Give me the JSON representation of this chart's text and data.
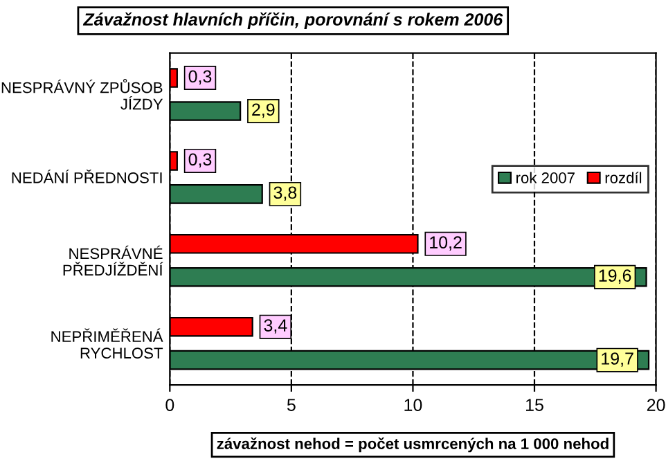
{
  "chart_data": {
    "type": "bar",
    "orientation": "horizontal",
    "title": "Závažnost hlavních příčin, porovnání s rokem 2006",
    "xlabel": "závažnost nehod = počet usmrcených na 1 000 nehod",
    "categories": [
      "NESPRÁVNÝ ZPŮSOB\nJÍZDY",
      "NEDÁNÍ PŘEDNOSTI",
      "NESPRÁVNÉ\nPŘEDJÍŽDĚNÍ",
      "NEPŘIMĚŘENÁ\nRYCHLOST"
    ],
    "series": [
      {
        "name": "rok 2007",
        "color": "#2e7d52",
        "values": [
          2.9,
          3.8,
          19.6,
          19.7
        ],
        "value_labels": [
          "2,9",
          "3,8",
          "19,6",
          "19,7"
        ]
      },
      {
        "name": "rozdíl",
        "color": "#ff0000",
        "values": [
          0.3,
          0.3,
          10.2,
          3.4
        ],
        "value_labels": [
          "0,3",
          "0,3",
          "10,2",
          "3,4"
        ]
      }
    ],
    "xlim": [
      0,
      20
    ],
    "xticks": [
      0,
      5,
      10,
      15,
      20
    ],
    "grid": "x",
    "legend": "right"
  }
}
